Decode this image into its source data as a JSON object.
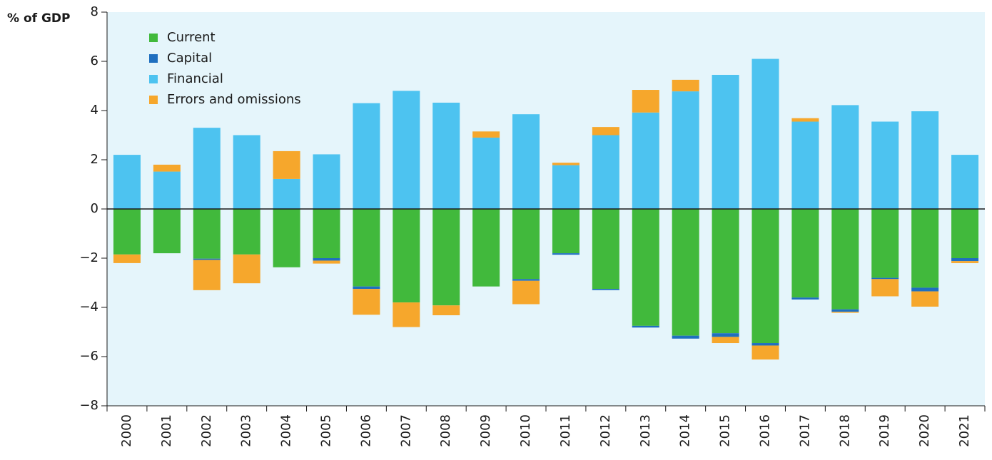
{
  "chart_data": {
    "type": "stacked_bar",
    "y_label": "% of GDP",
    "categories": [
      "2000",
      "2001",
      "2002",
      "2003",
      "2004",
      "2005",
      "2006",
      "2007",
      "2008",
      "2009",
      "2010",
      "2011",
      "2012",
      "2013",
      "2014",
      "2015",
      "2016",
      "2017",
      "2018",
      "2019",
      "2020",
      "2021"
    ],
    "series": [
      {
        "name": "Current",
        "color": "#41b93c",
        "values": [
          -1.85,
          -1.8,
          -2.02,
          -1.85,
          -2.37,
          -2.0,
          -3.15,
          -3.8,
          -3.92,
          -3.15,
          -2.85,
          -1.8,
          -3.25,
          -4.75,
          -5.15,
          -5.05,
          -5.45,
          -3.6,
          -4.08,
          -2.8,
          -3.2,
          -2.0
        ]
      },
      {
        "name": "Capital",
        "color": "#1f6fbf",
        "values": [
          0,
          0,
          -0.05,
          0,
          0,
          -0.1,
          -0.1,
          0,
          0,
          0,
          -0.07,
          -0.06,
          -0.05,
          -0.07,
          -0.12,
          -0.15,
          -0.1,
          -0.08,
          -0.1,
          -0.05,
          -0.15,
          -0.12
        ]
      },
      {
        "name": "Financial",
        "color": "#4dc3f0",
        "values": [
          2.2,
          1.52,
          3.3,
          3.0,
          1.22,
          2.22,
          4.3,
          4.8,
          4.32,
          2.9,
          3.85,
          1.78,
          3.0,
          3.92,
          4.78,
          5.45,
          6.1,
          3.55,
          4.22,
          3.55,
          3.97,
          2.2
        ]
      },
      {
        "name": "Errors and omissions",
        "color": "#f6a72c",
        "values": [
          -0.35,
          0.28,
          -1.23,
          -1.17,
          1.13,
          -0.12,
          -1.05,
          -1.0,
          -0.4,
          0.25,
          -0.95,
          0.1,
          0.33,
          0.92,
          0.47,
          -0.25,
          -0.57,
          0.14,
          -0.04,
          -0.7,
          -0.62,
          -0.08
        ]
      }
    ],
    "ylim": [
      -8,
      8
    ],
    "yticks": [
      {
        "value": -8,
        "label": "−8"
      },
      {
        "value": -6,
        "label": "−6"
      },
      {
        "value": -4,
        "label": "−4"
      },
      {
        "value": -2,
        "label": "−2"
      },
      0,
      2,
      4,
      6,
      8
    ],
    "legend": "upper left",
    "background": "#e5f5fb"
  }
}
